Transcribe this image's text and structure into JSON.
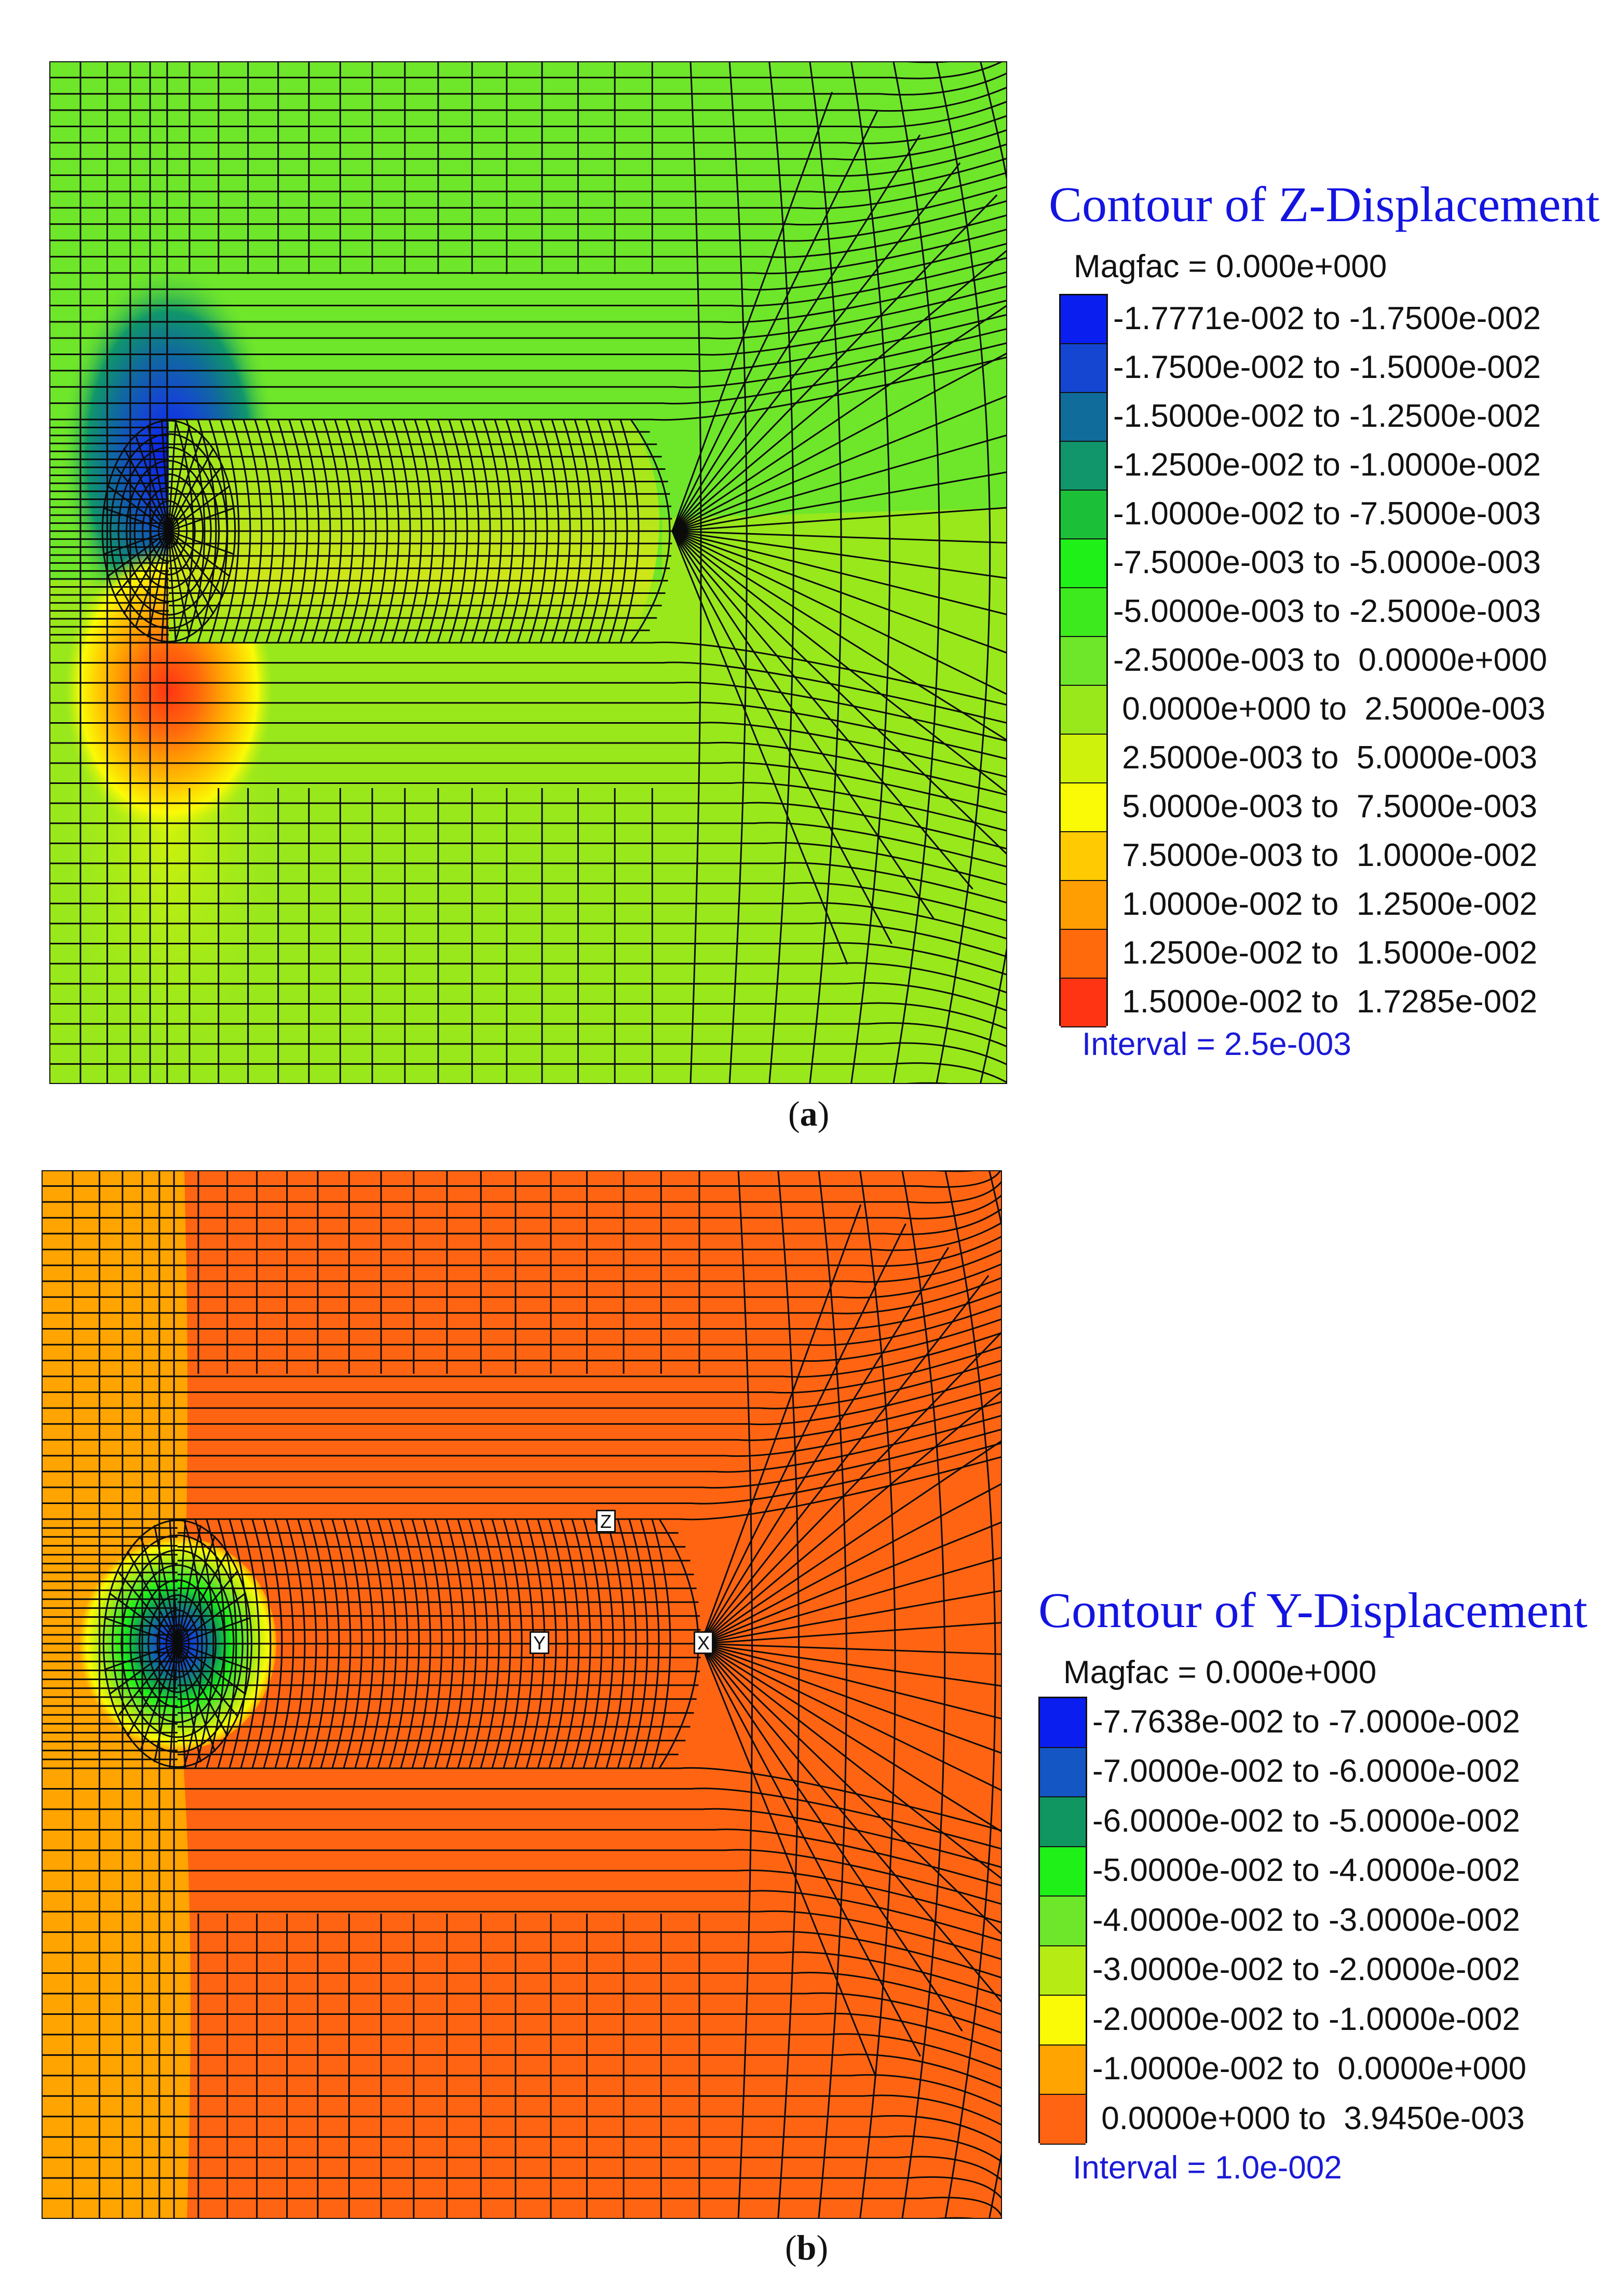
{
  "figure_a": {
    "legend": {
      "title": "Contour of Z-Displacement",
      "magfac": "Magfac =  0.000e+000",
      "interval": "Interval =  2.5e-003",
      "entries": [
        {
          "label": "-1.7771e-002 to -1.7500e-002",
          "color": "#0a1ef0"
        },
        {
          "label": "-1.7500e-002 to -1.5000e-002",
          "color": "#1446d2"
        },
        {
          "label": "-1.5000e-002 to -1.2500e-002",
          "color": "#106c9a"
        },
        {
          "label": "-1.2500e-002 to -1.0000e-002",
          "color": "#10966a"
        },
        {
          "label": "-1.0000e-002 to -7.5000e-003",
          "color": "#1cc038"
        },
        {
          "label": "-7.5000e-003 to -5.0000e-003",
          "color": "#1ef018"
        },
        {
          "label": "-5.0000e-003 to -2.5000e-003",
          "color": "#3cea1e"
        },
        {
          "label": "-2.5000e-003 to  0.0000e+000",
          "color": "#6ee62a"
        },
        {
          "label": " 0.0000e+000 to  2.5000e-003",
          "color": "#98e81c"
        },
        {
          "label": " 2.5000e-003 to  5.0000e-003",
          "color": "#cff20c"
        },
        {
          "label": " 5.0000e-003 to  7.5000e-003",
          "color": "#fafa06"
        },
        {
          "label": " 7.5000e-003 to  1.0000e-002",
          "color": "#ffca02"
        },
        {
          "label": " 1.0000e-002 to  1.2500e-002",
          "color": "#ff9e02"
        },
        {
          "label": " 1.2500e-002 to  1.5000e-002",
          "color": "#ff6a0c"
        },
        {
          "label": " 1.5000e-002 to  1.7285e-002",
          "color": "#ff3412"
        }
      ]
    },
    "caption_letter": "a",
    "caption_open": "(",
    "caption_close": ")"
  },
  "figure_b": {
    "legend": {
      "title": "Contour of Y-Displacement",
      "magfac": "Magfac =  0.000e+000",
      "interval": "Interval =  1.0e-002",
      "entries": [
        {
          "label": "-7.7638e-002 to -7.0000e-002",
          "color": "#0a1ef0"
        },
        {
          "label": "-7.0000e-002 to -6.0000e-002",
          "color": "#1456c4"
        },
        {
          "label": "-6.0000e-002 to -5.0000e-002",
          "color": "#109660"
        },
        {
          "label": "-5.0000e-002 to -4.0000e-002",
          "color": "#1ef018"
        },
        {
          "label": "-4.0000e-002 to -3.0000e-002",
          "color": "#6ee62a"
        },
        {
          "label": "-3.0000e-002 to -2.0000e-002",
          "color": "#b6ec14"
        },
        {
          "label": "-2.0000e-002 to -1.0000e-002",
          "color": "#fafa06"
        },
        {
          "label": "-1.0000e-002 to  0.0000e+000",
          "color": "#ffa400"
        },
        {
          "label": " 0.0000e+000 to  3.9450e-003",
          "color": "#ff6412"
        }
      ]
    },
    "axis_labels": {
      "z": "Z",
      "y": "Y",
      "x": "X"
    },
    "caption_letter": "b",
    "caption_open": "(",
    "caption_close": ")"
  }
}
